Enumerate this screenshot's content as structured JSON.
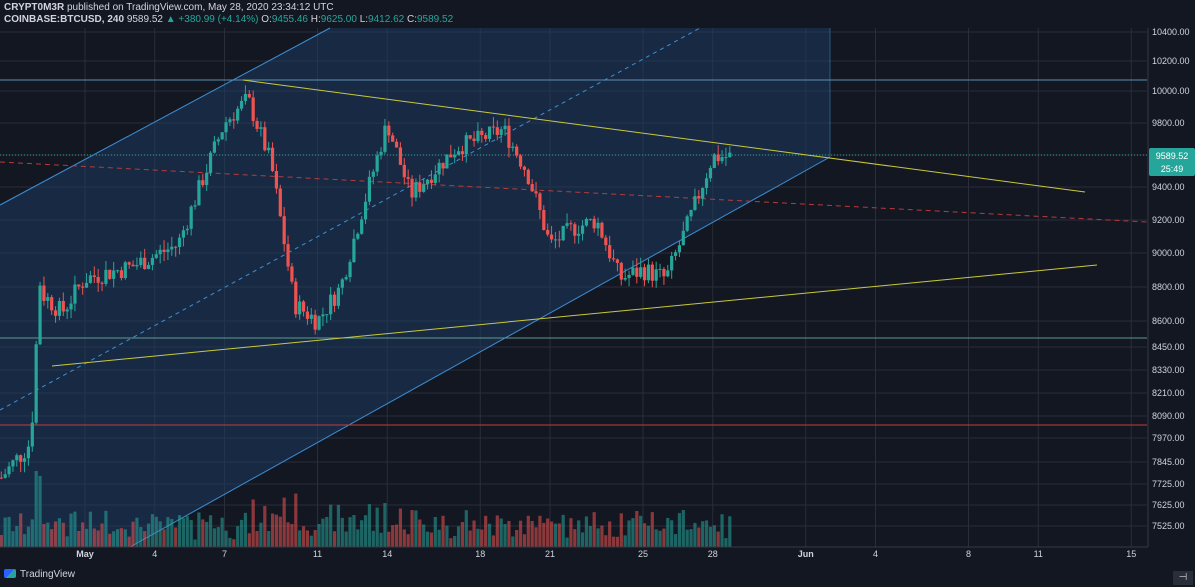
{
  "header": {
    "author": "CRYPT0M3R",
    "published": "published on TradingView.com, May 28, 2020 23:34:12 UTC",
    "symbol": "COINBASE:BTCUSD, 240",
    "last": "9589.52",
    "change": "▲ +380.99 (+4.14%)",
    "o_label": "O:",
    "o": "9455.46",
    "h_label": "H:",
    "h": "9625.00",
    "l_label": "L:",
    "l": "9412.62",
    "c_label": "C:",
    "c": "9589.52"
  },
  "footer": {
    "brand": "TradingView",
    "scroll_label": "⊣"
  },
  "colors": {
    "background": "#131722",
    "grid": "#2a2e39",
    "up": "#26a69a",
    "down": "#ef5350",
    "channel_fill": "#1e3a5f",
    "channel_line": "#3d8fd6",
    "wedge_line": "#c9c93a",
    "red_dashed": "#b83b3b",
    "support_line": "#c43c3c",
    "text": "#d1d4dc"
  },
  "chart_data": {
    "type": "candlestick",
    "interval": "240",
    "y_axis_ticks": [
      "10400.00",
      "10200.00",
      "10000.00",
      "9800.00",
      "9600.00",
      "9400.00",
      "9200.00",
      "9000.00",
      "8800.00",
      "8600.00",
      "8450.00",
      "8330.00",
      "8210.00",
      "8090.00",
      "7970.00",
      "7845.00",
      "7725.00",
      "7625.00",
      "7525.00"
    ],
    "x_axis_ticks": [
      "May",
      "4",
      "7",
      "11",
      "14",
      "18",
      "21",
      "25",
      "28",
      "Jun",
      "4",
      "8",
      "11",
      "15"
    ],
    "last_price_label": "9589.52",
    "countdown_label": "25:49",
    "approx_daily_closes": [
      {
        "date": "Apr 29",
        "close": 8780
      },
      {
        "date": "Apr 30",
        "close": 8650
      },
      {
        "date": "May 1",
        "close": 8850
      },
      {
        "date": "May 3",
        "close": 8920
      },
      {
        "date": "May 5",
        "close": 9050
      },
      {
        "date": "May 7",
        "close": 9800
      },
      {
        "date": "May 8",
        "close": 9950
      },
      {
        "date": "May 9",
        "close": 9550
      },
      {
        "date": "May 10",
        "close": 8700
      },
      {
        "date": "May 11",
        "close": 8600
      },
      {
        "date": "May 12",
        "close": 8800
      },
      {
        "date": "May 13",
        "close": 9300
      },
      {
        "date": "May 14",
        "close": 9800
      },
      {
        "date": "May 15",
        "close": 9350
      },
      {
        "date": "May 17",
        "close": 9650
      },
      {
        "date": "May 18",
        "close": 9700
      },
      {
        "date": "May 19",
        "close": 9760
      },
      {
        "date": "May 20",
        "close": 9500
      },
      {
        "date": "May 21",
        "close": 9050
      },
      {
        "date": "May 22",
        "close": 9150
      },
      {
        "date": "May 23",
        "close": 9200
      },
      {
        "date": "May 24",
        "close": 8850
      },
      {
        "date": "May 25",
        "close": 8900
      },
      {
        "date": "May 26",
        "close": 8850
      },
      {
        "date": "May 27",
        "close": 9200
      },
      {
        "date": "May 28",
        "close": 9589.52
      }
    ]
  }
}
